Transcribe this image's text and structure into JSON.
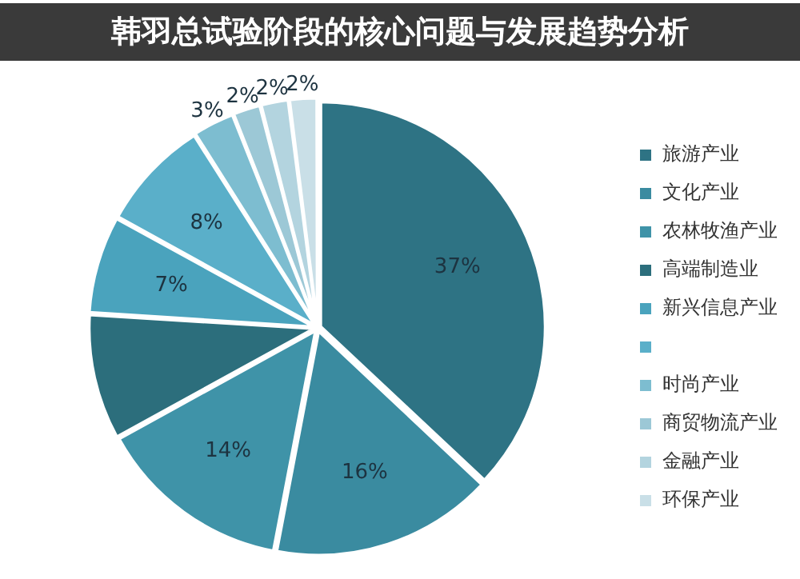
{
  "chart_data": {
    "type": "pie",
    "title": "韩羽总试验阶段的核心问题与发展趋势分析",
    "categories": [
      "旅游产业",
      "文化产业",
      "农林牧渔产业",
      "高端制造业",
      "新兴信息产业",
      null,
      "时尚产业",
      "商贸物流产业",
      "金融产业",
      "环保产业"
    ],
    "values": [
      37,
      16,
      14,
      9,
      7,
      8,
      3,
      2,
      2,
      2
    ],
    "colors": [
      "#2e7384",
      "#3a8ba0",
      "#3f93a8",
      "#2c6e7c",
      "#4aa3bd",
      "#5aafc9",
      "#7dbdd0",
      "#9cc8d6",
      "#b3d4df",
      "#c9dfe7"
    ],
    "value_labels": [
      "37%",
      "16%",
      "14%",
      null,
      "7%",
      "8%",
      "3%",
      "2%",
      "2%",
      "2%"
    ],
    "legend": "right"
  }
}
